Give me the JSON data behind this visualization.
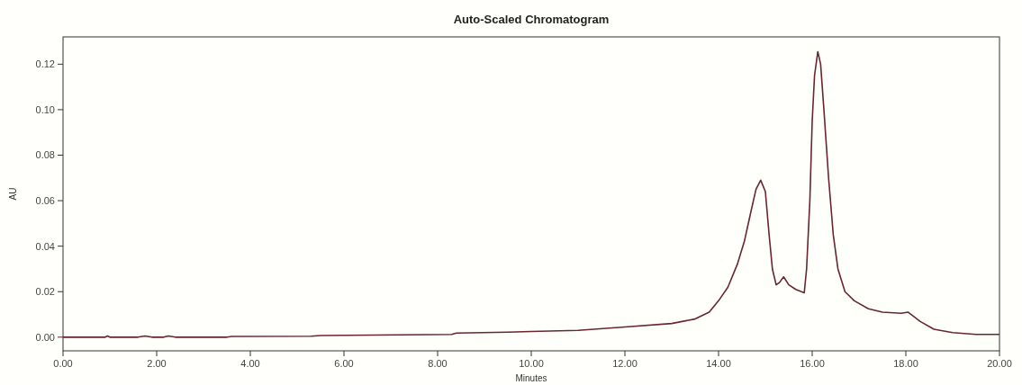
{
  "chart_data": {
    "type": "line",
    "title": "Auto-Scaled Chromatogram",
    "xlabel": "Minutes",
    "ylabel": "AU",
    "x": [
      0,
      0.9,
      0.95,
      1.0,
      1.6,
      1.75,
      1.9,
      2.15,
      2.25,
      2.4,
      3.5,
      3.6,
      5.3,
      5.5,
      8.3,
      8.4,
      9.5,
      10,
      11,
      12,
      13,
      13.5,
      13.8,
      14.0,
      14.2,
      14.4,
      14.55,
      14.7,
      14.8,
      14.9,
      15.0,
      15.08,
      15.15,
      15.23,
      15.3,
      15.39,
      15.5,
      15.65,
      15.83,
      15.88,
      15.95,
      16.0,
      16.05,
      16.12,
      16.18,
      16.25,
      16.35,
      16.45,
      16.55,
      16.7,
      16.9,
      17.2,
      17.5,
      17.9,
      18.05,
      18.3,
      18.6,
      19.0,
      19.5,
      20
    ],
    "series": [
      {
        "color": "#6b2530",
        "values": [
          0,
          0,
          0.0005,
          0,
          0,
          0.0005,
          0,
          0,
          0.0005,
          0,
          0,
          0.0003,
          0.0004,
          0.0007,
          0.0012,
          0.0018,
          0.0022,
          0.0025,
          0.003,
          0.0045,
          0.006,
          0.008,
          0.011,
          0.016,
          0.022,
          0.032,
          0.042,
          0.056,
          0.065,
          0.069,
          0.064,
          0.045,
          0.03,
          0.023,
          0.024,
          0.0265,
          0.023,
          0.021,
          0.0195,
          0.03,
          0.06,
          0.095,
          0.115,
          0.1255,
          0.12,
          0.1,
          0.07,
          0.045,
          0.03,
          0.02,
          0.016,
          0.0125,
          0.011,
          0.0105,
          0.011,
          0.007,
          0.0035,
          0.002,
          0.0012,
          0.0012
        ]
      }
    ],
    "xlim": [
      0,
      20
    ],
    "ylim": [
      -0.006,
      0.132
    ],
    "xticks": [
      {
        "value": 0,
        "label": "0.00"
      },
      {
        "value": 2,
        "label": "2.00"
      },
      {
        "value": 4,
        "label": "4.00"
      },
      {
        "value": 6,
        "label": "6.00"
      },
      {
        "value": 8,
        "label": "8.00"
      },
      {
        "value": 10,
        "label": "10.00"
      },
      {
        "value": 12,
        "label": "12.00"
      },
      {
        "value": 14,
        "label": "14.00"
      },
      {
        "value": 16,
        "label": "16.00"
      },
      {
        "value": 18,
        "label": "18.00"
      },
      {
        "value": 20,
        "label": "20.00"
      }
    ],
    "yticks": [
      {
        "value": 0,
        "label": "0.00"
      },
      {
        "value": 0.02,
        "label": "0.02"
      },
      {
        "value": 0.04,
        "label": "0.04"
      },
      {
        "value": 0.06,
        "label": "0.06"
      },
      {
        "value": 0.08,
        "label": "0.08"
      },
      {
        "value": 0.1,
        "label": "0.10"
      },
      {
        "value": 0.12,
        "label": "0.12"
      }
    ],
    "marker": "none",
    "line_style": "solid"
  }
}
